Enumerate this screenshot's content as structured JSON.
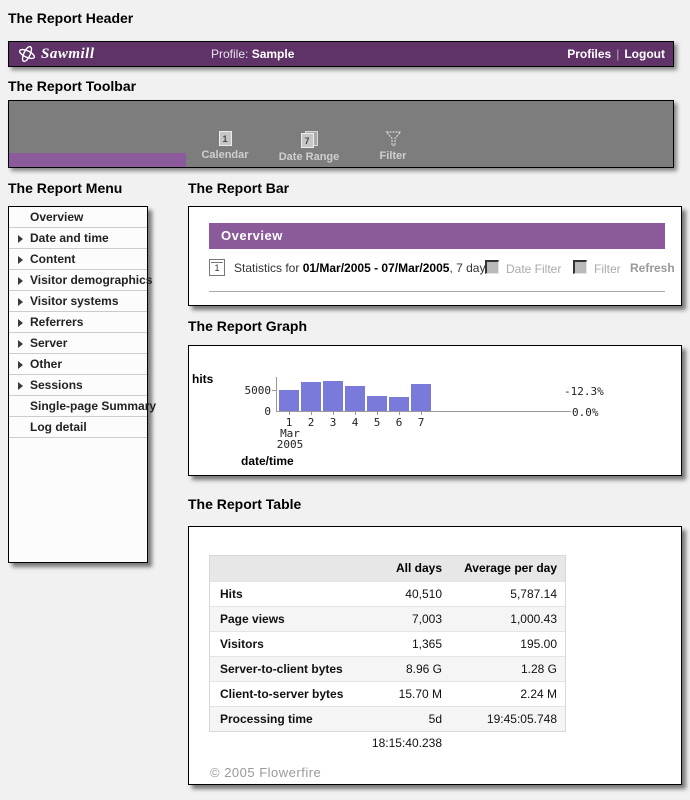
{
  "section_labels": {
    "header": "The Report Header",
    "toolbar": "The Report Toolbar",
    "menu": "The Report Menu",
    "bar": "The Report Bar",
    "graph": "The Report Graph",
    "table": "The Report Table"
  },
  "header": {
    "logo_text": "Sawmill",
    "profile_label": "Profile:",
    "profile_value": "Sample",
    "links": [
      "Profiles",
      "Logout"
    ],
    "separator": "|",
    "bg_color": "#5f3268"
  },
  "toolbar": {
    "bg_color": "#7d7d7d",
    "accent_color": "#8a5a9b",
    "buttons": [
      {
        "label": "Calendar",
        "icon": "calendar-1-icon",
        "badge": "1"
      },
      {
        "label": "Date Range",
        "icon": "calendar-7-icon",
        "badge": "7"
      },
      {
        "label": "Filter",
        "icon": "funnel-icon",
        "badge": ""
      }
    ]
  },
  "menu": {
    "items": [
      {
        "label": "Overview",
        "expandable": false
      },
      {
        "label": "Date and time",
        "expandable": true
      },
      {
        "label": "Content",
        "expandable": true
      },
      {
        "label": "Visitor demographics",
        "expandable": true
      },
      {
        "label": "Visitor systems",
        "expandable": true
      },
      {
        "label": "Referrers",
        "expandable": true
      },
      {
        "label": "Server",
        "expandable": true
      },
      {
        "label": "Other",
        "expandable": true
      },
      {
        "label": "Sessions",
        "expandable": true
      },
      {
        "label": "Single-page Summary",
        "expandable": false
      },
      {
        "label": "Log detail",
        "expandable": false
      }
    ]
  },
  "report_bar": {
    "title": "Overview",
    "title_bg": "#8a5a9b",
    "calendar_badge": "1",
    "stats_prefix": "Statistics for ",
    "date_range": "01/Mar/2005 - 07/Mar/2005",
    "stats_suffix": ", 7 days",
    "checkboxes": [
      "Date Filter",
      "Filter"
    ],
    "refresh_label": "Refresh"
  },
  "chart_data": {
    "type": "bar",
    "title": "",
    "ylabel": "hits",
    "xlabel": "date/time",
    "categories": [
      "1",
      "2",
      "3",
      "4",
      "5",
      "6",
      "7"
    ],
    "values": [
      5350,
      7250,
      7550,
      6350,
      3800,
      3400,
      6810
    ],
    "month_label": "Mar",
    "year_label": "2005",
    "yticks": [
      "0",
      "5000"
    ],
    "ylim": [
      0,
      7750
    ],
    "right_axis_labels": [
      "-12.3%",
      "0.0%"
    ],
    "bar_color": "#7a7ada",
    "grid": false,
    "legend": "none"
  },
  "report_table": {
    "columns": [
      "",
      "All days",
      "Average per day"
    ],
    "rows": [
      {
        "label": "Hits",
        "all_days": "40,510",
        "average_per_day": "5,787.14"
      },
      {
        "label": "Page views",
        "all_days": "7,003",
        "average_per_day": "1,000.43"
      },
      {
        "label": "Visitors",
        "all_days": "1,365",
        "average_per_day": "195.00"
      },
      {
        "label": "Server-to-client bytes",
        "all_days": "8.96 G",
        "average_per_day": "1.28 G"
      },
      {
        "label": "Client-to-server bytes",
        "all_days": "15.70 M",
        "average_per_day": "2.24 M"
      },
      {
        "label": "Processing time",
        "all_days": "5d 18:15:40.238",
        "average_per_day": "19:45:05.748"
      }
    ]
  },
  "footer": {
    "copyright": "© 2005 Flowerfire"
  }
}
